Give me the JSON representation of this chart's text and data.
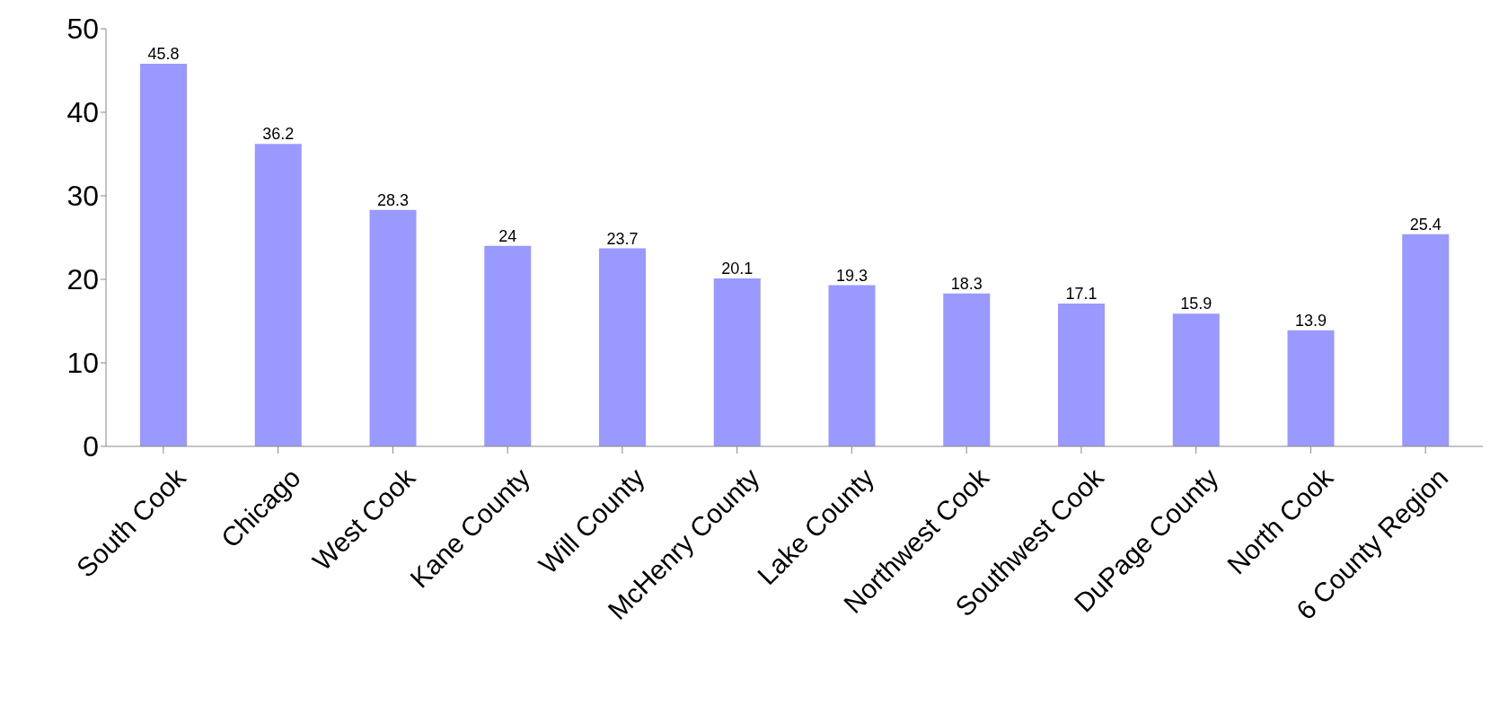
{
  "chart_data": {
    "type": "bar",
    "categories": [
      "South Cook",
      "Chicago",
      "West Cook",
      "Kane County",
      "Will County",
      "McHenry County",
      "Lake County",
      "Northwest Cook",
      "Southwest Cook",
      "DuPage County",
      "North Cook",
      "6 County Region"
    ],
    "values": [
      45.8,
      36.2,
      28.3,
      24,
      23.7,
      20.1,
      19.3,
      18.3,
      17.1,
      15.9,
      13.9,
      25.4
    ],
    "color": "#9999ff",
    "ylim": [
      0,
      50
    ],
    "yticks": [
      0,
      10,
      20,
      30,
      40,
      50
    ],
    "grid": false,
    "legend": false,
    "data_labels": true
  }
}
